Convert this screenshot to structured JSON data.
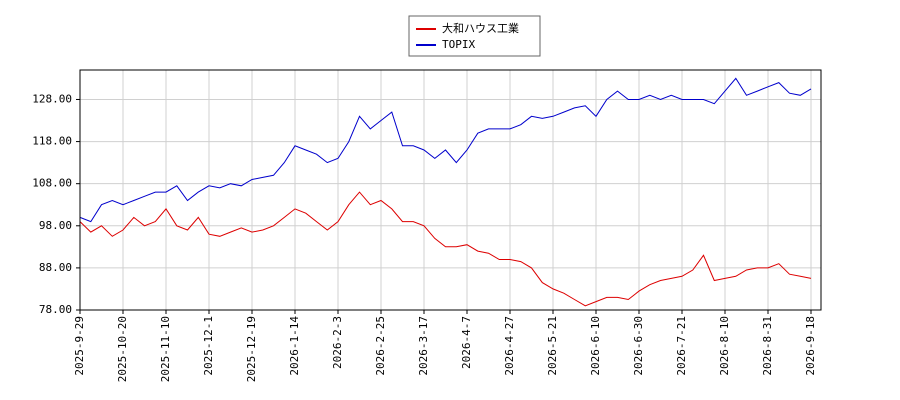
{
  "chart_data": {
    "type": "line",
    "categories": [
      "2025-9-29",
      null,
      null,
      null,
      "2025-10-20",
      null,
      null,
      null,
      "2025-11-10",
      null,
      null,
      null,
      "2025-12-1",
      null,
      null,
      null,
      "2025-12-19",
      null,
      null,
      null,
      "2026-1-14",
      null,
      null,
      null,
      "2026-2-3",
      null,
      null,
      null,
      "2026-2-25",
      null,
      null,
      null,
      "2026-3-17",
      null,
      null,
      null,
      "2026-4-7",
      null,
      null,
      null,
      "2026-4-27",
      null,
      null,
      null,
      "2026-5-21",
      null,
      null,
      null,
      "2026-6-10",
      null,
      null,
      null,
      "2026-6-30",
      null,
      null,
      null,
      "2026-7-21",
      null,
      null,
      null,
      "2026-8-10",
      null,
      null,
      null,
      "2026-8-31",
      null,
      null,
      null,
      "2026-9-18"
    ],
    "series": [
      {
        "name": "大和ハウス工業",
        "color": "#dd0000",
        "values": [
          99,
          96.5,
          98,
          95.5,
          97,
          100,
          98,
          99,
          102,
          98,
          97,
          100,
          96,
          95.5,
          96.5,
          97.5,
          96.5,
          97,
          98,
          100,
          102,
          101,
          99,
          97,
          99,
          103,
          106,
          103,
          104,
          102,
          99,
          99,
          98,
          95,
          93,
          93,
          93.5,
          92,
          91.5,
          90,
          90,
          89.5,
          88,
          84.5,
          83,
          82,
          80.5,
          79,
          80,
          81,
          81,
          80.5,
          82.5,
          84,
          85,
          85.5,
          86,
          87.5,
          91,
          85,
          85.5,
          86,
          87.5,
          88,
          88,
          89,
          86.5,
          86,
          85.5
        ]
      },
      {
        "name": "TOPIX",
        "color": "#0000cc",
        "values": [
          100,
          99,
          103,
          104,
          103,
          104,
          105,
          106,
          106,
          107.5,
          104,
          106,
          107.5,
          107,
          108,
          107.5,
          109,
          109.5,
          110,
          113,
          117,
          116,
          115,
          113,
          114,
          118,
          124,
          121,
          123,
          125,
          117,
          117,
          116,
          114,
          116,
          113,
          116,
          120,
          121,
          121,
          121,
          122,
          124,
          123.5,
          124,
          125,
          126,
          126.5,
          124,
          128,
          130,
          128,
          128,
          129,
          128,
          129,
          128,
          128,
          128,
          127,
          130,
          133,
          129,
          130,
          131,
          132,
          129.5,
          129,
          130.5
        ]
      }
    ],
    "ylim": [
      78,
      135
    ],
    "yticks": [
      {
        "value": 78,
        "label": "78.00"
      },
      {
        "value": 88,
        "label": "88.00"
      },
      {
        "value": 98,
        "label": "98.00"
      },
      {
        "value": 108,
        "label": "108.00"
      },
      {
        "value": 118,
        "label": "118.00"
      },
      {
        "value": 128,
        "label": "128.00"
      }
    ],
    "grid": true
  }
}
